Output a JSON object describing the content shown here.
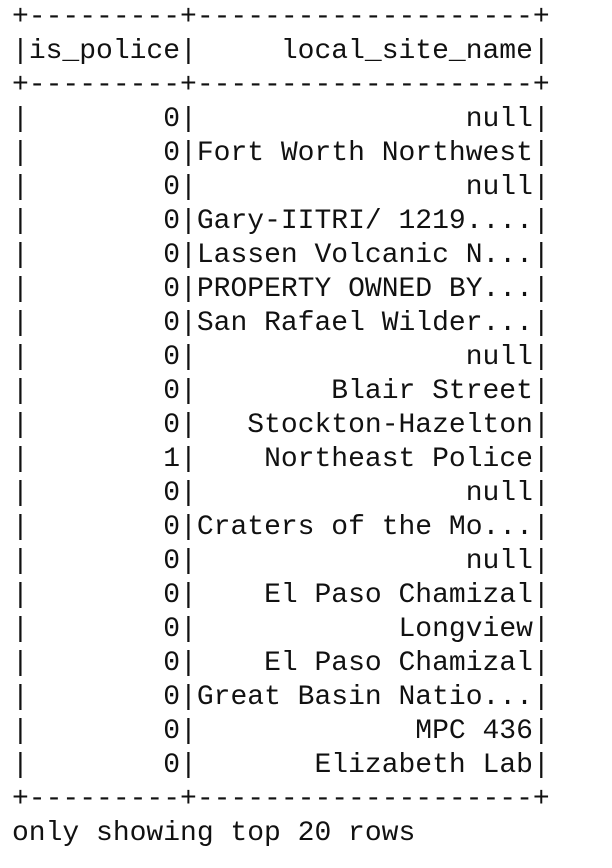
{
  "table": {
    "columns": [
      "is_police",
      "local_site_name"
    ],
    "rows": [
      [
        0,
        "null"
      ],
      [
        0,
        "Fort Worth Northwest"
      ],
      [
        0,
        "null"
      ],
      [
        0,
        "Gary-IITRI/ 1219...."
      ],
      [
        0,
        "Lassen Volcanic N..."
      ],
      [
        0,
        "PROPERTY OWNED BY..."
      ],
      [
        0,
        "San Rafael Wilder..."
      ],
      [
        0,
        "null"
      ],
      [
        0,
        "Blair Street"
      ],
      [
        0,
        "Stockton-Hazelton"
      ],
      [
        1,
        "Northeast Police"
      ],
      [
        0,
        "null"
      ],
      [
        0,
        "Craters of the Mo..."
      ],
      [
        0,
        "null"
      ],
      [
        0,
        "El Paso Chamizal"
      ],
      [
        0,
        "Longview"
      ],
      [
        0,
        "El Paso Chamizal"
      ],
      [
        0,
        "Great Basin Natio..."
      ],
      [
        0,
        "MPC 436"
      ],
      [
        0,
        "Elizabeth Lab"
      ]
    ]
  },
  "footer": "only showing top 20 rows"
}
